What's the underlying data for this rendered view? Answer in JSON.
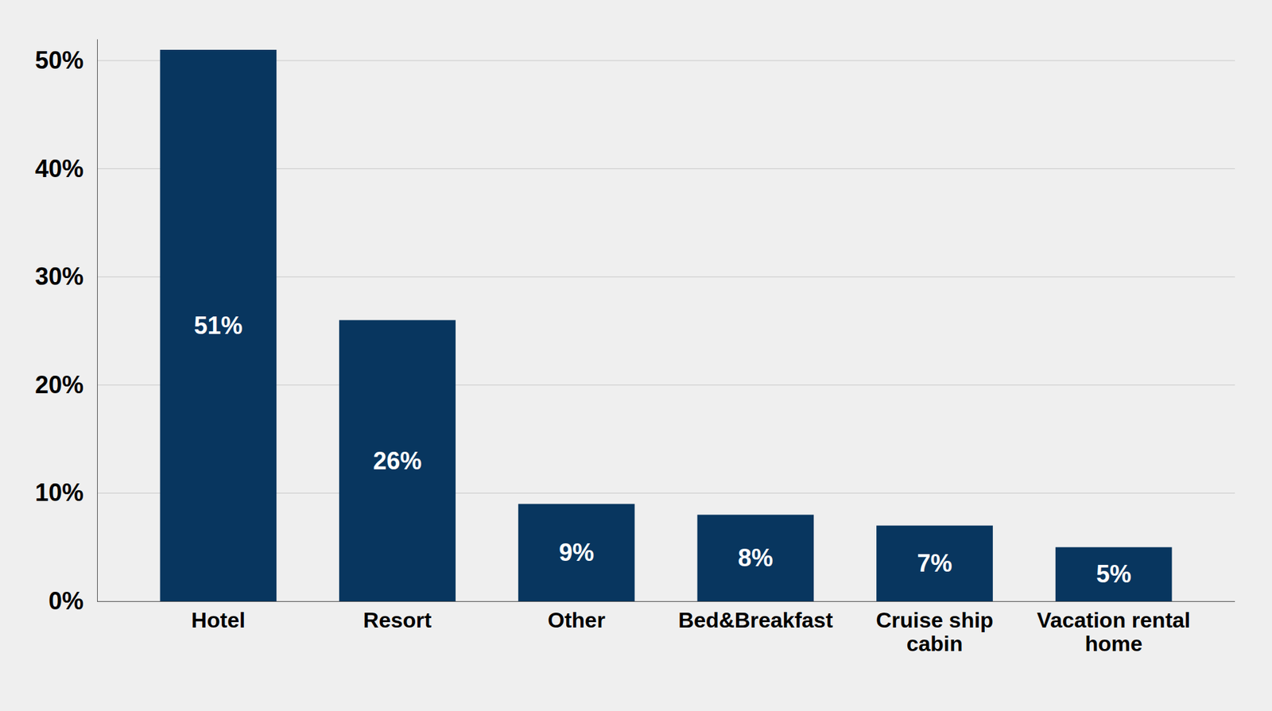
{
  "chart_data": {
    "type": "bar",
    "categories": [
      "Hotel",
      "Resort",
      "Other",
      "Bed&Breakfast",
      "Cruise ship cabin",
      "Vacation rental home"
    ],
    "values": [
      51,
      26,
      9,
      8,
      7,
      5
    ],
    "value_labels": [
      "51%",
      "26%",
      "9%",
      "8%",
      "7%",
      "5%"
    ],
    "color": "#08365f",
    "ylim": [
      0,
      52
    ],
    "yticks": [
      {
        "value": 0,
        "label": "0%"
      },
      {
        "value": 10,
        "label": "10%"
      },
      {
        "value": 20,
        "label": "20%"
      },
      {
        "value": 30,
        "label": "30%"
      },
      {
        "value": 40,
        "label": "40%"
      },
      {
        "value": 50,
        "label": "50%"
      }
    ],
    "grid": true,
    "data_labels": true
  }
}
